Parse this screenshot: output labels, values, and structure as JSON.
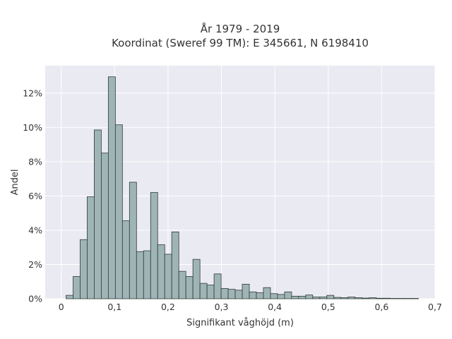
{
  "chart_data": {
    "type": "bar",
    "title": [
      "År 1979 - 2019",
      "Koordinat (Sweref 99 TM): E 345661, N 6198410"
    ],
    "xlabel": "Signifikant våghöjd (m)",
    "ylabel": "Andel",
    "xlim": [
      -0.03,
      0.7
    ],
    "ylim": [
      0,
      13.6
    ],
    "x_ticks": [
      0,
      0.1,
      0.2,
      0.3,
      0.4,
      0.5,
      0.6,
      0.7
    ],
    "x_tick_labels": [
      "0",
      "0,1",
      "0,2",
      "0,3",
      "0,4",
      "0,5",
      "0,6",
      "0,7"
    ],
    "y_ticks": [
      0,
      2,
      4,
      6,
      8,
      10,
      12
    ],
    "y_tick_labels": [
      "0%",
      "2%",
      "4%",
      "6%",
      "8%",
      "10%",
      "12%"
    ],
    "bin_width": 0.0132,
    "bin_start": 0.009,
    "values": [
      0.2,
      1.3,
      3.45,
      5.95,
      9.85,
      8.5,
      12.95,
      10.15,
      4.55,
      6.8,
      2.75,
      2.8,
      6.2,
      3.15,
      2.6,
      3.9,
      1.6,
      1.3,
      2.3,
      0.9,
      0.8,
      1.45,
      0.6,
      0.55,
      0.5,
      0.85,
      0.4,
      0.35,
      0.65,
      0.3,
      0.25,
      0.4,
      0.15,
      0.15,
      0.22,
      0.1,
      0.1,
      0.2,
      0.08,
      0.06,
      0.1,
      0.06,
      0.04,
      0.06,
      0.03,
      0.03,
      0.02,
      0.02,
      0.02,
      0.02
    ],
    "grid": true,
    "colors": {
      "bar_fill": "#9fb5b5",
      "bar_edge": "#2f3a3a",
      "plot_bg": "#eaeaf2",
      "grid": "#ffffff"
    }
  }
}
